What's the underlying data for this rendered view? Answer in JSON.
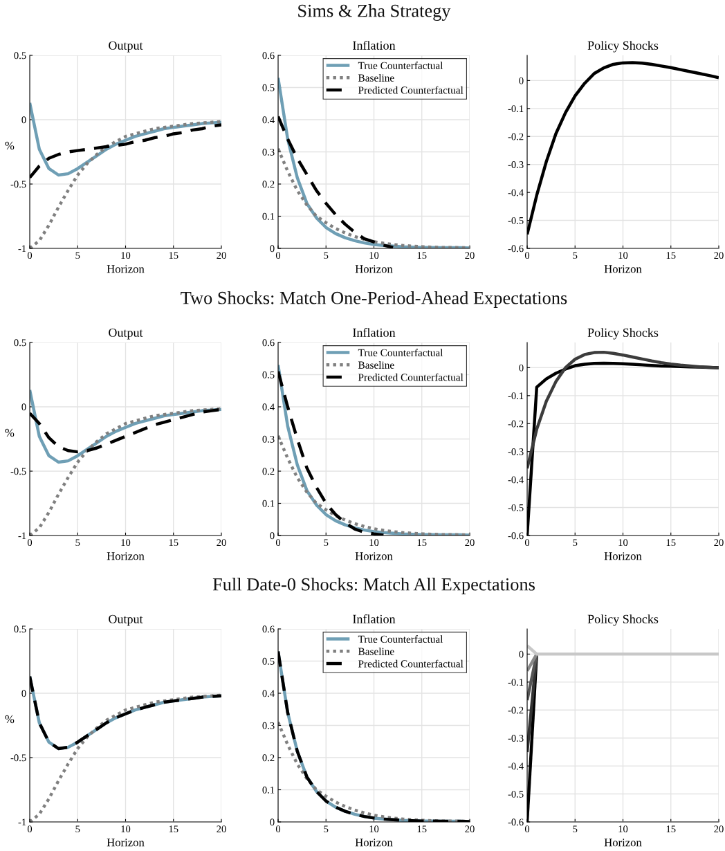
{
  "chart_data": [
    {
      "type": "line",
      "title": "Output",
      "xlabel": "Horizon",
      "ylabel": "%",
      "x": [
        0,
        1,
        2,
        3,
        4,
        5,
        6,
        7,
        8,
        9,
        10,
        11,
        12,
        13,
        14,
        15,
        16,
        17,
        18,
        19,
        20
      ],
      "xlim": [
        0,
        20
      ],
      "xticks": [
        0,
        5,
        10,
        15,
        20
      ],
      "ylim": [
        -1,
        0.5
      ],
      "yticks": [
        -1,
        -0.5,
        0,
        0.5
      ],
      "grid": true,
      "series": [
        {
          "color": "#6f9fb5",
          "line_style": "solid",
          "values": [
            0.13,
            -0.23,
            -0.38,
            -0.43,
            -0.42,
            -0.38,
            -0.33,
            -0.28,
            -0.23,
            -0.19,
            -0.16,
            -0.13,
            -0.11,
            -0.09,
            -0.07,
            -0.06,
            -0.05,
            -0.04,
            -0.03,
            -0.025,
            -0.02
          ]
        },
        {
          "color": "#808080",
          "line_style": "dotted",
          "values": [
            -1,
            -0.94,
            -0.82,
            -0.68,
            -0.55,
            -0.43,
            -0.34,
            -0.27,
            -0.21,
            -0.17,
            -0.13,
            -0.11,
            -0.09,
            -0.07,
            -0.06,
            -0.05,
            -0.04,
            -0.03,
            -0.025,
            -0.02,
            -0.015
          ]
        },
        {
          "color": "#000000",
          "line_style": "dashed",
          "values": [
            -0.45,
            -0.36,
            -0.3,
            -0.27,
            -0.25,
            -0.24,
            -0.23,
            -0.22,
            -0.21,
            -0.2,
            -0.19,
            -0.17,
            -0.16,
            -0.14,
            -0.13,
            -0.11,
            -0.1,
            -0.08,
            -0.07,
            -0.05,
            -0.04
          ]
        }
      ]
    },
    {
      "type": "line",
      "subtitle": "Sims & Zha Strategy",
      "title": "Inflation",
      "xlabel": "Horizon",
      "x": [
        0,
        1,
        2,
        3,
        4,
        5,
        6,
        7,
        8,
        9,
        10,
        11,
        12,
        13,
        14,
        15,
        16,
        17,
        18,
        19,
        20
      ],
      "xlim": [
        0,
        20
      ],
      "xticks": [
        0,
        5,
        10,
        15,
        20
      ],
      "ylim": [
        0,
        0.6
      ],
      "yticks": [
        0,
        0.1,
        0.2,
        0.3,
        0.4,
        0.5,
        0.6
      ],
      "grid": true,
      "legend": "top right",
      "series": [
        {
          "name": "True Counterfactual",
          "color": "#6f9fb5",
          "line_style": "solid",
          "values": [
            0.53,
            0.34,
            0.22,
            0.14,
            0.095,
            0.065,
            0.046,
            0.033,
            0.024,
            0.017,
            0.012,
            0.009,
            0.007,
            0.005,
            0.004,
            0.003,
            0.003,
            0.002,
            0.002,
            0.002,
            0.001
          ]
        },
        {
          "name": "Baseline",
          "color": "#808080",
          "line_style": "dotted",
          "values": [
            0.31,
            0.24,
            0.18,
            0.135,
            0.1,
            0.08,
            0.062,
            0.048,
            0.037,
            0.028,
            0.021,
            0.016,
            0.012,
            0.009,
            0.007,
            0.005,
            0.004,
            0.003,
            0.003,
            0.002,
            0.002
          ]
        },
        {
          "name": "Predicted Counterfactual",
          "color": "#000000",
          "line_style": "dashed",
          "values": [
            0.41,
            0.34,
            0.28,
            0.23,
            0.18,
            0.14,
            0.105,
            0.075,
            0.05,
            0.03,
            0.02,
            0.01,
            0.003,
            null,
            null,
            null,
            null,
            null,
            null,
            null,
            null
          ]
        }
      ]
    },
    {
      "type": "line",
      "title": "Policy Shocks",
      "xlabel": "Horizon",
      "x": [
        0,
        1,
        2,
        3,
        4,
        5,
        6,
        7,
        8,
        9,
        10,
        11,
        12,
        13,
        14,
        15,
        16,
        17,
        18,
        19,
        20
      ],
      "xlim": [
        0,
        20
      ],
      "xticks": [
        0,
        5,
        10,
        15,
        20
      ],
      "ylim": [
        -0.6,
        0.09
      ],
      "yticks": [
        -0.6,
        -0.5,
        -0.4,
        -0.3,
        -0.2,
        -0.1,
        0
      ],
      "grid": true,
      "series": [
        {
          "color": "#000000",
          "line_style": "solid",
          "values": [
            -0.55,
            -0.41,
            -0.29,
            -0.19,
            -0.115,
            -0.055,
            -0.01,
            0.025,
            0.045,
            0.058,
            0.063,
            0.064,
            0.062,
            0.058,
            0.052,
            0.046,
            0.039,
            0.032,
            0.025,
            0.018,
            0.01
          ]
        }
      ]
    },
    {
      "type": "line",
      "title": "Output",
      "xlabel": "Horizon",
      "ylabel": "%",
      "x": [
        0,
        1,
        2,
        3,
        4,
        5,
        6,
        7,
        8,
        9,
        10,
        11,
        12,
        13,
        14,
        15,
        16,
        17,
        18,
        19,
        20
      ],
      "xlim": [
        0,
        20
      ],
      "xticks": [
        0,
        5,
        10,
        15,
        20
      ],
      "ylim": [
        -1,
        0.5
      ],
      "yticks": [
        -1,
        -0.5,
        0,
        0.5
      ],
      "grid": true,
      "series": [
        {
          "color": "#6f9fb5",
          "line_style": "solid",
          "values": [
            0.13,
            -0.23,
            -0.38,
            -0.43,
            -0.42,
            -0.38,
            -0.33,
            -0.28,
            -0.23,
            -0.19,
            -0.16,
            -0.13,
            -0.11,
            -0.09,
            -0.07,
            -0.06,
            -0.05,
            -0.04,
            -0.03,
            -0.025,
            -0.02
          ]
        },
        {
          "color": "#808080",
          "line_style": "dotted",
          "values": [
            -1,
            -0.94,
            -0.82,
            -0.68,
            -0.55,
            -0.43,
            -0.34,
            -0.27,
            -0.21,
            -0.17,
            -0.13,
            -0.11,
            -0.09,
            -0.07,
            -0.06,
            -0.05,
            -0.04,
            -0.03,
            -0.025,
            -0.02,
            -0.015
          ]
        },
        {
          "color": "#000000",
          "line_style": "dashed",
          "values": [
            -0.05,
            -0.13,
            -0.24,
            -0.31,
            -0.34,
            -0.35,
            -0.34,
            -0.32,
            -0.29,
            -0.26,
            -0.23,
            -0.2,
            -0.17,
            -0.14,
            -0.12,
            -0.1,
            -0.08,
            -0.06,
            -0.04,
            -0.03,
            -0.02
          ]
        }
      ]
    },
    {
      "type": "line",
      "subtitle": "Two Shocks: Match One-Period-Ahead Expectations",
      "title": "Inflation",
      "xlabel": "Horizon",
      "x": [
        0,
        1,
        2,
        3,
        4,
        5,
        6,
        7,
        8,
        9,
        10,
        11,
        12,
        13,
        14,
        15,
        16,
        17,
        18,
        19,
        20
      ],
      "xlim": [
        0,
        20
      ],
      "xticks": [
        0,
        5,
        10,
        15,
        20
      ],
      "ylim": [
        0,
        0.6
      ],
      "yticks": [
        0,
        0.1,
        0.2,
        0.3,
        0.4,
        0.5,
        0.6
      ],
      "grid": true,
      "legend": "top right",
      "series": [
        {
          "name": "True Counterfactual",
          "color": "#6f9fb5",
          "line_style": "solid",
          "values": [
            0.53,
            0.34,
            0.22,
            0.14,
            0.095,
            0.065,
            0.046,
            0.033,
            0.024,
            0.017,
            0.012,
            0.009,
            0.007,
            0.005,
            0.004,
            0.003,
            0.003,
            0.002,
            0.002,
            0.002,
            0.001
          ]
        },
        {
          "name": "Baseline",
          "color": "#808080",
          "line_style": "dotted",
          "values": [
            0.31,
            0.24,
            0.18,
            0.135,
            0.1,
            0.08,
            0.062,
            0.048,
            0.037,
            0.028,
            0.021,
            0.016,
            0.012,
            0.009,
            0.007,
            0.005,
            0.004,
            0.003,
            0.003,
            0.002,
            0.002
          ]
        },
        {
          "name": "Predicted Counterfactual",
          "color": "#000000",
          "line_style": "dashed",
          "values": [
            0.51,
            0.4,
            0.3,
            0.21,
            0.15,
            0.1,
            0.065,
            0.04,
            0.02,
            0.01,
            0.005,
            0.001,
            null,
            null,
            null,
            null,
            null,
            null,
            null,
            null,
            null
          ]
        }
      ]
    },
    {
      "type": "line",
      "title": "Policy Shocks",
      "xlabel": "Horizon",
      "x": [
        0,
        1,
        2,
        3,
        4,
        5,
        6,
        7,
        8,
        9,
        10,
        11,
        12,
        13,
        14,
        15,
        16,
        17,
        18,
        19,
        20
      ],
      "xlim": [
        0,
        20
      ],
      "xticks": [
        0,
        5,
        10,
        15,
        20
      ],
      "ylim": [
        -0.6,
        0.09
      ],
      "yticks": [
        -0.6,
        -0.5,
        -0.4,
        -0.3,
        -0.2,
        -0.1,
        0
      ],
      "grid": true,
      "series": [
        {
          "color": "#000000",
          "line_style": "solid",
          "values": [
            -0.6,
            -0.07,
            -0.04,
            -0.02,
            -0.005,
            0.007,
            0.012,
            0.015,
            0.016,
            0.015,
            0.014,
            0.012,
            0.01,
            0.008,
            0.006,
            0.005,
            0.004,
            0.003,
            0.002,
            0.001,
            0
          ]
        },
        {
          "color": "#3c3c3c",
          "line_style": "solid",
          "values": [
            -0.36,
            -0.22,
            -0.12,
            -0.05,
            0,
            0.03,
            0.047,
            0.054,
            0.055,
            0.051,
            0.045,
            0.038,
            0.031,
            0.024,
            0.018,
            0.013,
            0.009,
            0.006,
            0.003,
            0.001,
            -0.001
          ]
        }
      ]
    },
    {
      "type": "line",
      "title": "Output",
      "xlabel": "Horizon",
      "ylabel": "%",
      "x": [
        0,
        1,
        2,
        3,
        4,
        5,
        6,
        7,
        8,
        9,
        10,
        11,
        12,
        13,
        14,
        15,
        16,
        17,
        18,
        19,
        20
      ],
      "xlim": [
        0,
        20
      ],
      "xticks": [
        0,
        5,
        10,
        15,
        20
      ],
      "ylim": [
        -1,
        0.5
      ],
      "yticks": [
        -1,
        -0.5,
        0,
        0.5
      ],
      "grid": true,
      "series": [
        {
          "color": "#6f9fb5",
          "line_style": "solid",
          "values": [
            0.13,
            -0.23,
            -0.38,
            -0.43,
            -0.42,
            -0.38,
            -0.33,
            -0.28,
            -0.23,
            -0.19,
            -0.16,
            -0.13,
            -0.11,
            -0.09,
            -0.07,
            -0.06,
            -0.05,
            -0.04,
            -0.03,
            -0.025,
            -0.02
          ]
        },
        {
          "color": "#808080",
          "line_style": "dotted",
          "values": [
            -1,
            -0.94,
            -0.82,
            -0.68,
            -0.55,
            -0.43,
            -0.34,
            -0.27,
            -0.21,
            -0.17,
            -0.13,
            -0.11,
            -0.09,
            -0.07,
            -0.06,
            -0.05,
            -0.04,
            -0.03,
            -0.025,
            -0.02,
            -0.015
          ]
        },
        {
          "color": "#000000",
          "line_style": "dashed",
          "values": [
            0.13,
            -0.23,
            -0.38,
            -0.43,
            -0.42,
            -0.38,
            -0.33,
            -0.28,
            -0.23,
            -0.19,
            -0.16,
            -0.13,
            -0.11,
            -0.09,
            -0.07,
            -0.06,
            -0.05,
            -0.04,
            -0.03,
            -0.025,
            -0.02
          ]
        }
      ]
    },
    {
      "type": "line",
      "subtitle": "Full Date-0 Shocks: Match All Expectations",
      "title": "Inflation",
      "xlabel": "Horizon",
      "x": [
        0,
        1,
        2,
        3,
        4,
        5,
        6,
        7,
        8,
        9,
        10,
        11,
        12,
        13,
        14,
        15,
        16,
        17,
        18,
        19,
        20
      ],
      "xlim": [
        0,
        20
      ],
      "xticks": [
        0,
        5,
        10,
        15,
        20
      ],
      "ylim": [
        0,
        0.6
      ],
      "yticks": [
        0,
        0.1,
        0.2,
        0.3,
        0.4,
        0.5,
        0.6
      ],
      "grid": true,
      "legend": "top right",
      "series": [
        {
          "name": "True Counterfactual",
          "color": "#6f9fb5",
          "line_style": "solid",
          "values": [
            0.53,
            0.34,
            0.22,
            0.14,
            0.095,
            0.065,
            0.046,
            0.033,
            0.024,
            0.017,
            0.012,
            0.009,
            0.007,
            0.005,
            0.004,
            0.003,
            0.003,
            0.002,
            0.002,
            0.002,
            0.001
          ]
        },
        {
          "name": "Baseline",
          "color": "#808080",
          "line_style": "dotted",
          "values": [
            0.31,
            0.24,
            0.18,
            0.135,
            0.1,
            0.08,
            0.062,
            0.048,
            0.037,
            0.028,
            0.021,
            0.016,
            0.012,
            0.009,
            0.007,
            0.005,
            0.004,
            0.003,
            0.003,
            0.002,
            0.002
          ]
        },
        {
          "name": "Predicted Counterfactual",
          "color": "#000000",
          "line_style": "dashed",
          "values": [
            0.53,
            0.34,
            0.22,
            0.14,
            0.095,
            0.065,
            0.046,
            0.033,
            0.024,
            0.017,
            0.012,
            0.009,
            0.007,
            0.005,
            0.004,
            0.003,
            0.003,
            0.002,
            0.002,
            0.002,
            0.001
          ]
        }
      ]
    },
    {
      "type": "line",
      "title": "Policy Shocks",
      "xlabel": "Horizon",
      "x": [
        0,
        1,
        2,
        3,
        4,
        5,
        6,
        7,
        8,
        9,
        10,
        11,
        12,
        13,
        14,
        15,
        16,
        17,
        18,
        19,
        20
      ],
      "xlim": [
        0,
        20
      ],
      "xticks": [
        0,
        5,
        10,
        15,
        20
      ],
      "ylim": [
        -0.6,
        0.09
      ],
      "yticks": [
        -0.6,
        -0.5,
        -0.4,
        -0.3,
        -0.2,
        -0.1,
        0
      ],
      "grid": true,
      "series": [
        {
          "color": "#000000",
          "line_style": "solid",
          "values": [
            -0.6,
            0,
            null,
            null,
            null,
            null,
            null,
            null,
            null,
            null,
            null,
            null,
            null,
            null,
            null,
            null,
            null,
            null,
            null,
            null,
            null
          ]
        },
        {
          "color": "#333333",
          "line_style": "solid",
          "values": [
            -0.35,
            0,
            null,
            null,
            null,
            null,
            null,
            null,
            null,
            null,
            null,
            null,
            null,
            null,
            null,
            null,
            null,
            null,
            null,
            null,
            null
          ]
        },
        {
          "color": "#555555",
          "line_style": "solid",
          "values": [
            -0.165,
            0,
            null,
            null,
            null,
            null,
            null,
            null,
            null,
            null,
            null,
            null,
            null,
            null,
            null,
            null,
            null,
            null,
            null,
            null,
            null
          ]
        },
        {
          "color": "#888888",
          "line_style": "solid",
          "values": [
            -0.06,
            0,
            null,
            null,
            null,
            null,
            null,
            null,
            null,
            null,
            null,
            null,
            null,
            null,
            null,
            null,
            null,
            null,
            null,
            null,
            null
          ]
        },
        {
          "color": "#c8c8c8",
          "line_style": "solid",
          "values": [
            0.03,
            0,
            0,
            0,
            0,
            0,
            0,
            0,
            0,
            0,
            0,
            0,
            0,
            0,
            0,
            0,
            0,
            0,
            0,
            0,
            0
          ]
        }
      ]
    }
  ]
}
